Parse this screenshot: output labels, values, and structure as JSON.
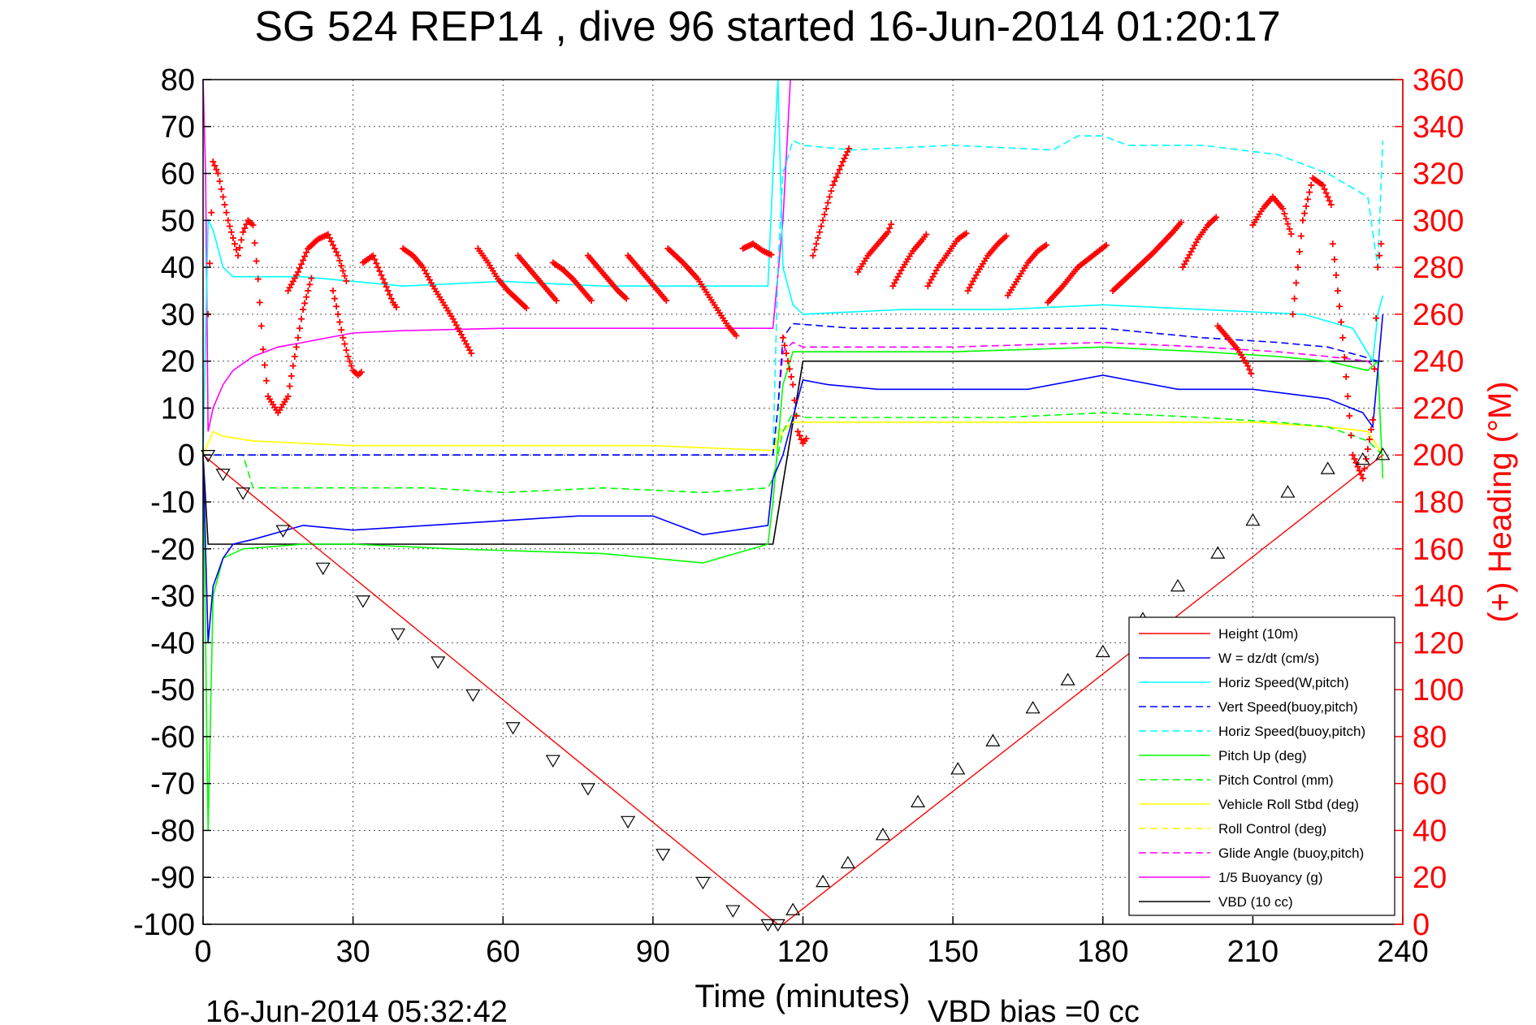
{
  "chart_data": {
    "type": "line",
    "title": "SG 524   REP14  , dive 96 started 16-Jun-2014 01:20:17",
    "xlabel": "Time (minutes)",
    "ylabel_right": "(+) Heading (°M)",
    "footer_left": "16-Jun-2014 05:32:42",
    "footer_right": "VBD bias =0 cc",
    "xlim": [
      0,
      240
    ],
    "ylim": [
      -100,
      80
    ],
    "ylim_right": [
      0,
      360
    ],
    "x_ticks": [
      0,
      30,
      60,
      90,
      120,
      150,
      180,
      210,
      240
    ],
    "y_ticks": [
      80,
      70,
      60,
      50,
      40,
      30,
      20,
      10,
      0,
      -10,
      -20,
      -30,
      -40,
      -50,
      -60,
      -70,
      -80,
      -90,
      -100
    ],
    "y_ticks_right": [
      360,
      340,
      320,
      300,
      280,
      260,
      240,
      220,
      200,
      180,
      160,
      140,
      120,
      100,
      80,
      60,
      40,
      20,
      0
    ],
    "grid": true,
    "legend_position": "bottom-right",
    "colors": {
      "height": "#ff0000",
      "w": "#0000ff",
      "horiz_speed": "#00ffff",
      "vert_speed_buoy": "#0000ff",
      "horiz_speed_buoy": "#00ffff",
      "pitch": "#00ff00",
      "pitch_control": "#00ff00",
      "roll": "#ffff00",
      "roll_control": "#ffff00",
      "glide": "#ff00ff",
      "buoyancy": "#ff00ff",
      "vbd": "#000000",
      "heading": "#ff0000"
    },
    "series": [
      {
        "name": "Height (10m)",
        "key": "height",
        "style": "solid",
        "x": [
          0,
          115,
          116,
          236
        ],
        "values": [
          0,
          -100,
          -100,
          0
        ]
      },
      {
        "name": "W = dz/dt (cm/s)",
        "key": "w",
        "style": "solid",
        "x": [
          0,
          1,
          2,
          4,
          6,
          10,
          20,
          30,
          45,
          60,
          75,
          90,
          100,
          113,
          114,
          116,
          118,
          120,
          125,
          135,
          150,
          165,
          180,
          195,
          210,
          225,
          232,
          234,
          236
        ],
        "values": [
          0,
          -40,
          -28,
          -22,
          -19,
          -18,
          -15,
          -16,
          -15,
          -14,
          -13,
          -13,
          -17,
          -15,
          -5,
          0,
          8,
          16,
          15,
          14,
          14,
          14,
          17,
          14,
          14,
          12,
          9,
          6,
          30
        ]
      },
      {
        "name": "Horiz Speed(W,pitch)",
        "key": "horiz_speed",
        "style": "solid",
        "x": [
          0,
          1,
          2,
          4,
          6,
          10,
          20,
          40,
          60,
          80,
          100,
          113,
          114,
          115,
          116,
          118,
          120,
          140,
          160,
          180,
          200,
          220,
          230,
          234,
          235,
          236
        ],
        "values": [
          0,
          50,
          48,
          40,
          38,
          38,
          38,
          36,
          37,
          36,
          36,
          36,
          60,
          80,
          40,
          32,
          30,
          31,
          31,
          32,
          31,
          30,
          27,
          20,
          30,
          34
        ]
      },
      {
        "name": "Vert Speed(buoy,pitch)",
        "key": "vert_speed_buoy",
        "style": "dashed",
        "x": [
          0,
          1,
          114,
          115,
          116,
          118,
          130,
          150,
          175,
          180,
          190,
          200,
          215,
          225,
          232,
          235
        ],
        "values": [
          0,
          0,
          0,
          10,
          25,
          28,
          27,
          27,
          27,
          27,
          26,
          25,
          24,
          23,
          21,
          20
        ]
      },
      {
        "name": "Horiz Speed(buoy,pitch)",
        "key": "horiz_speed_buoy",
        "style": "dashed",
        "x": [
          0,
          114,
          115,
          116,
          118,
          120,
          130,
          150,
          170,
          175,
          180,
          185,
          200,
          215,
          225,
          233,
          235,
          236
        ],
        "values": [
          0,
          0,
          40,
          60,
          67,
          66,
          65,
          66,
          65,
          68,
          68,
          66,
          66,
          64,
          60,
          55,
          40,
          67
        ]
      },
      {
        "name": "Pitch Up (deg)",
        "key": "pitch",
        "style": "solid",
        "x": [
          0,
          1,
          2,
          4,
          8,
          20,
          30,
          50,
          80,
          100,
          113,
          114,
          116,
          118,
          120,
          150,
          180,
          200,
          215,
          225,
          233,
          235,
          236
        ],
        "values": [
          0,
          -80,
          -30,
          -22,
          -20,
          -19,
          -19,
          -20,
          -21,
          -23,
          -19,
          -10,
          15,
          22,
          22,
          22,
          23,
          22,
          21,
          20,
          18,
          20,
          -5
        ]
      },
      {
        "name": "Pitch Control (mm)",
        "key": "pitch_control",
        "style": "dashed",
        "x": [
          0,
          8,
          10,
          30,
          45,
          60,
          80,
          100,
          113,
          114,
          116,
          118,
          120,
          140,
          160,
          180,
          200,
          215,
          225,
          233,
          236
        ],
        "values": [
          0,
          0,
          -7,
          -7,
          -7,
          -8,
          -7,
          -8,
          -7,
          -5,
          5,
          9,
          8,
          8,
          8,
          9,
          8,
          7,
          6,
          3,
          0
        ]
      },
      {
        "name": "Vehicle Roll Stbd (deg)",
        "key": "roll",
        "style": "solid",
        "x": [
          0,
          2,
          4,
          10,
          30,
          60,
          90,
          113,
          114,
          116,
          118,
          120,
          150,
          180,
          210,
          225,
          233,
          236
        ],
        "values": [
          0,
          5,
          4,
          3,
          2,
          2,
          2,
          1,
          1,
          5,
          7,
          7,
          7,
          7,
          7,
          6,
          5,
          0
        ]
      },
      {
        "name": "Roll Control (deg)",
        "key": "roll_control",
        "style": "dashed",
        "x": [
          0,
          114,
          115,
          118,
          120,
          150,
          180,
          210,
          225,
          233,
          236
        ],
        "values": [
          0,
          0,
          5,
          7,
          7,
          7,
          7,
          7,
          6,
          5,
          0
        ]
      },
      {
        "name": "Glide Angle (buoy,pitch)",
        "key": "glide",
        "style": "dashed",
        "x": [
          0,
          114,
          115,
          116,
          118,
          120,
          150,
          180,
          200,
          215,
          225,
          233,
          235
        ],
        "values": [
          0,
          0,
          10,
          22,
          24,
          23,
          23,
          24,
          23,
          22,
          21,
          20,
          18
        ]
      },
      {
        "name": "1/5 Buoyancy (g)",
        "key": "buoyancy",
        "style": "solid",
        "x": [
          0,
          0.5,
          1,
          2,
          4,
          6,
          10,
          15,
          20,
          30,
          40,
          60,
          90,
          113,
          114,
          116,
          117.5
        ],
        "values": [
          80,
          60,
          5,
          10,
          15,
          18,
          21,
          23,
          24,
          26,
          26.5,
          27,
          27,
          27,
          27,
          50,
          80
        ]
      },
      {
        "name": "VBD (10 cc)",
        "key": "vbd",
        "style": "solid",
        "x": [
          0,
          1,
          114,
          120,
          236
        ],
        "values": [
          0,
          -19,
          -19,
          20,
          20
        ]
      }
    ],
    "heading_segments": [
      {
        "x": [
          1,
          2,
          3,
          5,
          7
        ],
        "values": [
          260,
          325,
          320,
          300,
          285
        ]
      },
      {
        "x": [
          7,
          8,
          9,
          10,
          11,
          12,
          13,
          15,
          17,
          18,
          20,
          22
        ],
        "values": [
          285,
          295,
          300,
          298,
          275,
          245,
          225,
          218,
          225,
          238,
          262,
          278
        ]
      },
      {
        "x": [
          17,
          19,
          21,
          23,
          25,
          27,
          29
        ],
        "values": [
          270,
          278,
          288,
          292,
          294,
          285,
          272
        ]
      },
      {
        "x": [
          26,
          27,
          28,
          29,
          30,
          31,
          32
        ],
        "values": [
          270,
          260,
          250,
          242,
          236,
          234,
          236
        ]
      },
      {
        "x": [
          32,
          34,
          36,
          38,
          39
        ],
        "values": [
          282,
          285,
          275,
          265,
          262
        ]
      },
      {
        "x": [
          40,
          42,
          44,
          46,
          48,
          50,
          52,
          54
        ],
        "values": [
          288,
          285,
          280,
          272,
          265,
          258,
          250,
          242
        ]
      },
      {
        "x": [
          55,
          57,
          59,
          61,
          63,
          65
        ],
        "values": [
          288,
          282,
          275,
          270,
          266,
          262
        ]
      },
      {
        "x": [
          63,
          65,
          67,
          69,
          71
        ],
        "values": [
          285,
          280,
          275,
          270,
          265
        ]
      },
      {
        "x": [
          70,
          72,
          74,
          76,
          78
        ],
        "values": [
          282,
          279,
          275,
          270,
          265
        ]
      },
      {
        "x": [
          77,
          79,
          81,
          83,
          85
        ],
        "values": [
          285,
          280,
          275,
          270,
          266
        ]
      },
      {
        "x": [
          85,
          87,
          89,
          91,
          93
        ],
        "values": [
          285,
          280,
          275,
          270,
          265
        ]
      },
      {
        "x": [
          93,
          96,
          99,
          102,
          105,
          107
        ],
        "values": [
          288,
          282,
          275,
          265,
          255,
          250
        ]
      },
      {
        "x": [
          108,
          110,
          112,
          114
        ],
        "values": [
          288,
          290,
          287,
          285
        ]
      },
      {
        "x": [
          116,
          118,
          119,
          120,
          121
        ],
        "values": [
          250,
          230,
          210,
          205,
          208
        ]
      },
      {
        "x": [
          122,
          124,
          126,
          128,
          129.5
        ],
        "values": [
          285,
          300,
          315,
          325,
          332
        ]
      },
      {
        "x": [
          131,
          133,
          135,
          137,
          138
        ],
        "values": [
          278,
          285,
          290,
          295,
          300
        ]
      },
      {
        "x": [
          138,
          140,
          142,
          144,
          145
        ],
        "values": [
          272,
          280,
          287,
          292,
          295
        ]
      },
      {
        "x": [
          145,
          147,
          149,
          151,
          153
        ],
        "values": [
          272,
          280,
          286,
          292,
          295
        ]
      },
      {
        "x": [
          153,
          155,
          157,
          159,
          161
        ],
        "values": [
          270,
          278,
          285,
          290,
          294
        ]
      },
      {
        "x": [
          161,
          163,
          165,
          167,
          169
        ],
        "values": [
          268,
          275,
          282,
          287,
          290
        ]
      },
      {
        "x": [
          169,
          172,
          175,
          178,
          181
        ],
        "values": [
          265,
          272,
          280,
          285,
          290
        ]
      },
      {
        "x": [
          182,
          186,
          190,
          194,
          196
        ],
        "values": [
          270,
          278,
          286,
          295,
          300
        ]
      },
      {
        "x": [
          196,
          199,
          201,
          203
        ],
        "values": [
          280,
          292,
          298,
          302
        ]
      },
      {
        "x": [
          203,
          205,
          207,
          209,
          210
        ],
        "values": [
          255,
          250,
          245,
          238,
          233
        ]
      },
      {
        "x": [
          210,
          212,
          214,
          216,
          218
        ],
        "values": [
          298,
          305,
          310,
          305,
          292
        ]
      },
      {
        "x": [
          218,
          220,
          222,
          224,
          226
        ],
        "values": [
          260,
          300,
          318,
          315,
          305
        ]
      },
      {
        "x": [
          226,
          228,
          230,
          232,
          234,
          235,
          236
        ],
        "values": [
          290,
          250,
          200,
          190,
          215,
          280,
          295
        ]
      }
    ],
    "markers": {
      "x": [
        1,
        4,
        8,
        16,
        24,
        32,
        39,
        47,
        54,
        62,
        70,
        77,
        85,
        92,
        100,
        106,
        113,
        115,
        118,
        124,
        129,
        136,
        143,
        151,
        158,
        166,
        173,
        180,
        188,
        195,
        203,
        210,
        217,
        225,
        232,
        236
      ],
      "values": [
        0,
        -4,
        -8,
        -16,
        -24,
        -31,
        -38,
        -44,
        -51,
        -58,
        -65,
        -71,
        -78,
        -85,
        -91,
        -97,
        -100,
        -100,
        -97,
        -91,
        -87,
        -81,
        -74,
        -67,
        -61,
        -54,
        -48,
        -42,
        -35,
        -28,
        -21,
        -14,
        -8,
        -3,
        -1,
        0
      ]
    }
  }
}
